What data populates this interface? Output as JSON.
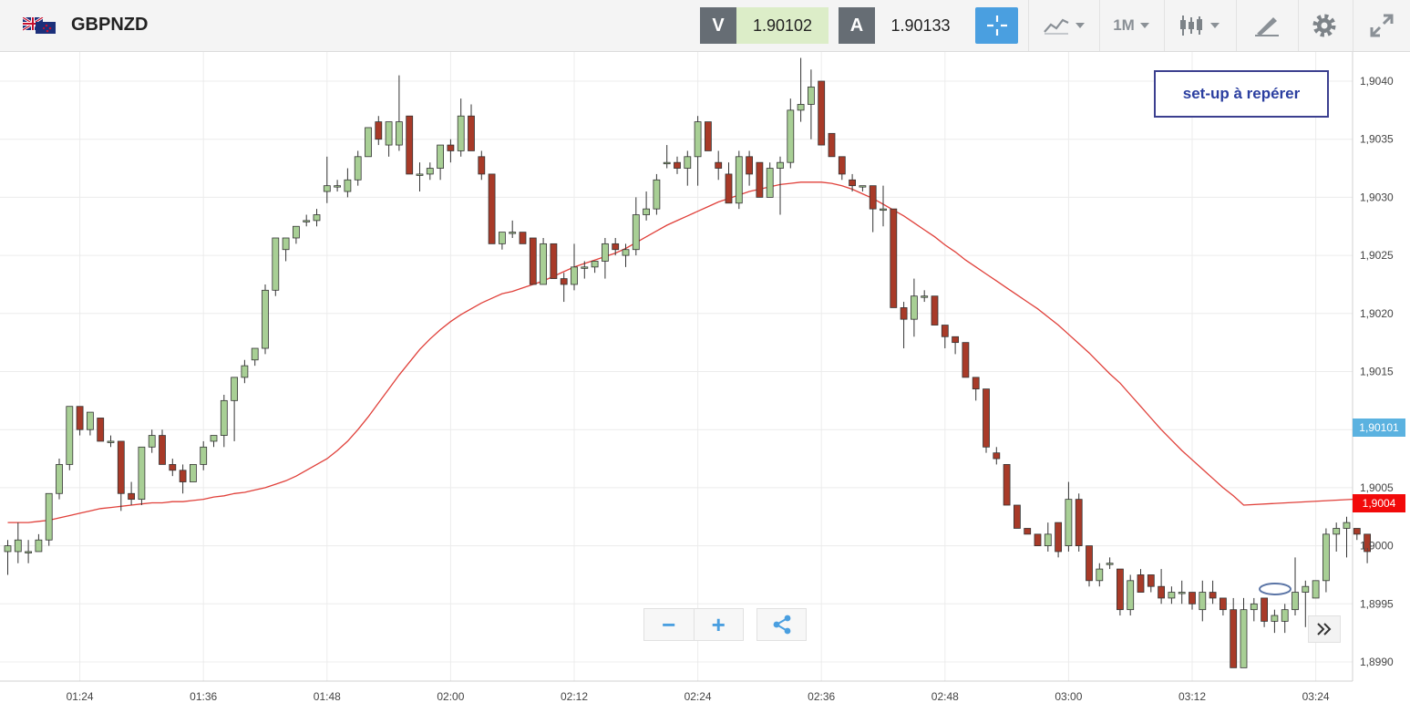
{
  "toolbar": {
    "symbol": "GBPNZD",
    "sell_label": "V",
    "sell_price": "1.90102",
    "buy_label": "A",
    "buy_price": "1.90133",
    "timeframe": "1M",
    "icons": [
      "uk-nz-flag-icon",
      "crosshair-icon",
      "chart-type-icon",
      "candles-icon",
      "drawing-tools-icon",
      "gear-icon",
      "expand-icon"
    ]
  },
  "annotation": {
    "text": "set-up à repérer"
  },
  "price_tags": {
    "bid": "1,90101",
    "ma": "1,9004"
  },
  "colors": {
    "up": "#a8cf95",
    "down": "#a83a28",
    "ma": "#e0403a",
    "bid_tag": "#5bb2e0",
    "ma_tag": "#f20a0a",
    "accent": "#4a9fe0"
  },
  "controls": {
    "zoom_out": "−",
    "zoom_in": "+",
    "share_icon": "share-icon",
    "scroll_icon": "double-chevron-right-icon"
  },
  "chart_data": {
    "type": "candlestick",
    "symbol": "GBPNZD",
    "timeframe": "1M",
    "x_tick_labels": [
      "01:24",
      "01:36",
      "01:48",
      "02:00",
      "02:12",
      "02:24",
      "02:36",
      "02:48",
      "03:00",
      "03:12",
      "03:24"
    ],
    "y_tick_labels": [
      "1,8990",
      "1,8995",
      "1,9000",
      "1,9005",
      "1,9010",
      "1,9015",
      "1,9020",
      "1,9025",
      "1,9030",
      "1,9035",
      "1,9040"
    ],
    "ylim": [
      1.89885,
      1.90435
    ],
    "grid": true,
    "candles": [
      [
        1.89995,
        1.90005,
        1.89975,
        1.9
      ],
      [
        1.89995,
        1.9002,
        1.89985,
        1.90005
      ],
      [
        1.89995,
        1.90005,
        1.89985,
        1.89995
      ],
      [
        1.89995,
        1.9001,
        1.89995,
        1.90005
      ],
      [
        1.90005,
        1.90045,
        1.9,
        1.90045
      ],
      [
        1.90045,
        1.90075,
        1.9004,
        1.9007
      ],
      [
        1.9007,
        1.9012,
        1.90065,
        1.9012
      ],
      [
        1.9012,
        1.9012,
        1.90095,
        1.901
      ],
      [
        1.901,
        1.90115,
        1.90095,
        1.90115
      ],
      [
        1.9011,
        1.9011,
        1.9009,
        1.9009
      ],
      [
        1.9009,
        1.90095,
        1.90085,
        1.9009
      ],
      [
        1.9009,
        1.9009,
        1.9003,
        1.90045
      ],
      [
        1.90045,
        1.90055,
        1.90035,
        1.9004
      ],
      [
        1.9004,
        1.90085,
        1.90035,
        1.90085
      ],
      [
        1.90085,
        1.901,
        1.9008,
        1.90095
      ],
      [
        1.90095,
        1.901,
        1.9007,
        1.9007
      ],
      [
        1.9007,
        1.90075,
        1.9006,
        1.90065
      ],
      [
        1.90065,
        1.9007,
        1.90045,
        1.90055
      ],
      [
        1.90055,
        1.9007,
        1.90055,
        1.9007
      ],
      [
        1.9007,
        1.9009,
        1.90065,
        1.90085
      ],
      [
        1.9009,
        1.90095,
        1.90085,
        1.90095
      ],
      [
        1.90095,
        1.9013,
        1.90085,
        1.90125
      ],
      [
        1.90125,
        1.90145,
        1.9009,
        1.90145
      ],
      [
        1.90145,
        1.9016,
        1.9014,
        1.90155
      ],
      [
        1.9016,
        1.9017,
        1.90155,
        1.9017
      ],
      [
        1.9017,
        1.90225,
        1.90165,
        1.9022
      ],
      [
        1.9022,
        1.90265,
        1.90215,
        1.90265
      ],
      [
        1.90255,
        1.90265,
        1.90245,
        1.90265
      ],
      [
        1.90265,
        1.90275,
        1.9026,
        1.90275
      ],
      [
        1.9028,
        1.90285,
        1.90275,
        1.9028
      ],
      [
        1.9028,
        1.9029,
        1.90275,
        1.90285
      ],
      [
        1.90305,
        1.90335,
        1.90295,
        1.9031
      ],
      [
        1.9031,
        1.90315,
        1.90305,
        1.9031
      ],
      [
        1.90305,
        1.90325,
        1.903,
        1.90315
      ],
      [
        1.90315,
        1.9034,
        1.9031,
        1.90335
      ],
      [
        1.90335,
        1.9036,
        1.90335,
        1.9036
      ],
      [
        1.90365,
        1.9037,
        1.90345,
        1.9035
      ],
      [
        1.90345,
        1.90365,
        1.90335,
        1.90365
      ],
      [
        1.90345,
        1.90405,
        1.9034,
        1.90365
      ],
      [
        1.9037,
        1.9037,
        1.9032,
        1.9032
      ],
      [
        1.9032,
        1.9033,
        1.90305,
        1.9032
      ],
      [
        1.9032,
        1.9033,
        1.90315,
        1.90325
      ],
      [
        1.90325,
        1.90345,
        1.90315,
        1.90345
      ],
      [
        1.90345,
        1.9035,
        1.9033,
        1.9034
      ],
      [
        1.9034,
        1.90385,
        1.90335,
        1.9037
      ],
      [
        1.9037,
        1.9038,
        1.90345,
        1.9034
      ],
      [
        1.90335,
        1.9034,
        1.90315,
        1.9032
      ],
      [
        1.9032,
        1.9032,
        1.9026,
        1.9026
      ],
      [
        1.9026,
        1.9027,
        1.90255,
        1.9027
      ],
      [
        1.9027,
        1.9028,
        1.90265,
        1.9027
      ],
      [
        1.9027,
        1.9027,
        1.9026,
        1.9026
      ],
      [
        1.90265,
        1.90265,
        1.90225,
        1.90225
      ],
      [
        1.90225,
        1.90265,
        1.90225,
        1.9026
      ],
      [
        1.9026,
        1.9026,
        1.9023,
        1.9023
      ],
      [
        1.9023,
        1.90235,
        1.9021,
        1.90225
      ],
      [
        1.90225,
        1.9026,
        1.9022,
        1.9024
      ],
      [
        1.9024,
        1.90245,
        1.9023,
        1.9024
      ],
      [
        1.9024,
        1.90245,
        1.90235,
        1.90245
      ],
      [
        1.90245,
        1.90265,
        1.9023,
        1.9026
      ],
      [
        1.9026,
        1.90265,
        1.9025,
        1.90255
      ],
      [
        1.9025,
        1.9026,
        1.9024,
        1.90255
      ],
      [
        1.90255,
        1.903,
        1.9025,
        1.90285
      ],
      [
        1.90285,
        1.90305,
        1.9028,
        1.9029
      ],
      [
        1.9029,
        1.9032,
        1.90285,
        1.90315
      ],
      [
        1.9033,
        1.90345,
        1.90325,
        1.9033
      ],
      [
        1.9033,
        1.90335,
        1.9032,
        1.90325
      ],
      [
        1.90325,
        1.9034,
        1.9031,
        1.90335
      ],
      [
        1.90335,
        1.9037,
        1.9031,
        1.90365
      ],
      [
        1.90365,
        1.90365,
        1.9034,
        1.9034
      ],
      [
        1.9033,
        1.9034,
        1.90315,
        1.90325
      ],
      [
        1.9032,
        1.9033,
        1.90295,
        1.90295
      ],
      [
        1.90295,
        1.9034,
        1.9029,
        1.90335
      ],
      [
        1.90335,
        1.9034,
        1.9031,
        1.9032
      ],
      [
        1.9033,
        1.9033,
        1.903,
        1.903
      ],
      [
        1.903,
        1.9033,
        1.903,
        1.90325
      ],
      [
        1.90325,
        1.90335,
        1.90285,
        1.9033
      ],
      [
        1.9033,
        1.90385,
        1.90325,
        1.90375
      ],
      [
        1.90375,
        1.9042,
        1.90365,
        1.9038
      ],
      [
        1.9038,
        1.9041,
        1.9035,
        1.90395
      ],
      [
        1.904,
        1.904,
        1.90345,
        1.90345
      ],
      [
        1.90355,
        1.90355,
        1.90335,
        1.90335
      ],
      [
        1.90335,
        1.90335,
        1.90315,
        1.9032
      ],
      [
        1.90315,
        1.9032,
        1.90305,
        1.9031
      ],
      [
        1.9031,
        1.9031,
        1.90305,
        1.9031
      ],
      [
        1.9031,
        1.9031,
        1.9027,
        1.9029
      ],
      [
        1.9029,
        1.9031,
        1.90275,
        1.9029
      ],
      [
        1.9029,
        1.9029,
        1.90205,
        1.90205
      ],
      [
        1.90205,
        1.9021,
        1.9017,
        1.90195
      ],
      [
        1.90195,
        1.9023,
        1.9018,
        1.90215
      ],
      [
        1.90215,
        1.9022,
        1.9021,
        1.90215
      ],
      [
        1.90215,
        1.90215,
        1.9019,
        1.9019
      ],
      [
        1.9019,
        1.9019,
        1.9017,
        1.9018
      ],
      [
        1.9018,
        1.9018,
        1.90165,
        1.90175
      ],
      [
        1.90175,
        1.90175,
        1.90145,
        1.90145
      ],
      [
        1.90145,
        1.90145,
        1.90125,
        1.90135
      ],
      [
        1.90135,
        1.90135,
        1.9008,
        1.90085
      ],
      [
        1.9008,
        1.90085,
        1.9007,
        1.90075
      ],
      [
        1.9007,
        1.9007,
        1.90035,
        1.90035
      ],
      [
        1.90035,
        1.90035,
        1.90015,
        1.90015
      ],
      [
        1.90015,
        1.90015,
        1.9001,
        1.9001
      ],
      [
        1.9001,
        1.9001,
        1.9,
        1.9
      ],
      [
        1.9,
        1.9002,
        1.89995,
        1.9001
      ],
      [
        1.9002,
        1.9002,
        1.8999,
        1.89995
      ],
      [
        1.9,
        1.90055,
        1.89995,
        1.9004
      ],
      [
        1.9004,
        1.90045,
        1.89995,
        1.9
      ],
      [
        1.9,
        1.9,
        1.89965,
        1.8997
      ],
      [
        1.8997,
        1.89985,
        1.89965,
        1.8998
      ],
      [
        1.89985,
        1.8999,
        1.8998,
        1.89985
      ],
      [
        1.8998,
        1.8998,
        1.8994,
        1.89945
      ],
      [
        1.89945,
        1.89975,
        1.8994,
        1.8997
      ],
      [
        1.89975,
        1.8998,
        1.8996,
        1.8996
      ],
      [
        1.89975,
        1.89975,
        1.8996,
        1.89965
      ],
      [
        1.89965,
        1.8998,
        1.8995,
        1.89955
      ],
      [
        1.89955,
        1.89965,
        1.8995,
        1.8996
      ],
      [
        1.8996,
        1.8997,
        1.8995,
        1.8996
      ],
      [
        1.8996,
        1.8996,
        1.89945,
        1.8995
      ],
      [
        1.89945,
        1.8997,
        1.89935,
        1.8996
      ],
      [
        1.8996,
        1.8997,
        1.8995,
        1.89955
      ],
      [
        1.89955,
        1.89955,
        1.8994,
        1.89945
      ],
      [
        1.89945,
        1.89955,
        1.89895,
        1.89895
      ],
      [
        1.89895,
        1.89955,
        1.89895,
        1.89945
      ],
      [
        1.89945,
        1.89955,
        1.89935,
        1.8995
      ],
      [
        1.89955,
        1.89955,
        1.8993,
        1.89935
      ],
      [
        1.89935,
        1.89945,
        1.89925,
        1.8994
      ],
      [
        1.89935,
        1.8995,
        1.89925,
        1.89945
      ],
      [
        1.89945,
        1.8999,
        1.8994,
        1.8996
      ],
      [
        1.8996,
        1.8997,
        1.8993,
        1.89965
      ],
      [
        1.89955,
        1.8997,
        1.89955,
        1.8997
      ],
      [
        1.8997,
        1.90015,
        1.8996,
        1.9001
      ],
      [
        1.9001,
        1.9002,
        1.89995,
        1.90015
      ],
      [
        1.90015,
        1.90025,
        1.8999,
        1.9002
      ],
      [
        1.90015,
        1.90015,
        1.90005,
        1.9001
      ],
      [
        1.9001,
        1.9001,
        1.89985,
        1.89995
      ]
    ],
    "moving_average": [
      1.9002,
      1.9002,
      1.9002,
      1.90021,
      1.90022,
      1.90024,
      1.90026,
      1.90028,
      1.9003,
      1.90032,
      1.90033,
      1.90034,
      1.90035,
      1.90036,
      1.90037,
      1.90037,
      1.90038,
      1.90038,
      1.90039,
      1.9004,
      1.90042,
      1.90043,
      1.90045,
      1.90046,
      1.90048,
      1.9005,
      1.90053,
      1.90056,
      1.9006,
      1.90065,
      1.9007,
      1.90075,
      1.90082,
      1.9009,
      1.901,
      1.90111,
      1.90123,
      1.90135,
      1.90147,
      1.90158,
      1.90169,
      1.90178,
      1.90186,
      1.90193,
      1.90199,
      1.90204,
      1.90209,
      1.90213,
      1.90217,
      1.90219,
      1.90222,
      1.90225,
      1.90228,
      1.90232,
      1.90236,
      1.9024,
      1.90243,
      1.90246,
      1.90249,
      1.90252,
      1.90256,
      1.90261,
      1.90266,
      1.90271,
      1.90276,
      1.9028,
      1.90284,
      1.90288,
      1.90292,
      1.90296,
      1.90299,
      1.90302,
      1.90305,
      1.90307,
      1.90309,
      1.90311,
      1.90312,
      1.90313,
      1.90313,
      1.90313,
      1.90312,
      1.9031,
      1.90307,
      1.90303,
      1.90299,
      1.90294,
      1.90289,
      1.90284,
      1.90278,
      1.90272,
      1.90266,
      1.90259,
      1.90253,
      1.90246,
      1.9024,
      1.90234,
      1.90228,
      1.90222,
      1.90216,
      1.9021,
      1.90204,
      1.90197,
      1.9019,
      1.90182,
      1.90174,
      1.90166,
      1.90157,
      1.90148,
      1.9014,
      1.9013,
      1.9012,
      1.9011,
      1.901,
      1.90091,
      1.90082,
      1.90074,
      1.90066,
      1.90058,
      1.9005,
      1.90043,
      1.90035
    ]
  }
}
